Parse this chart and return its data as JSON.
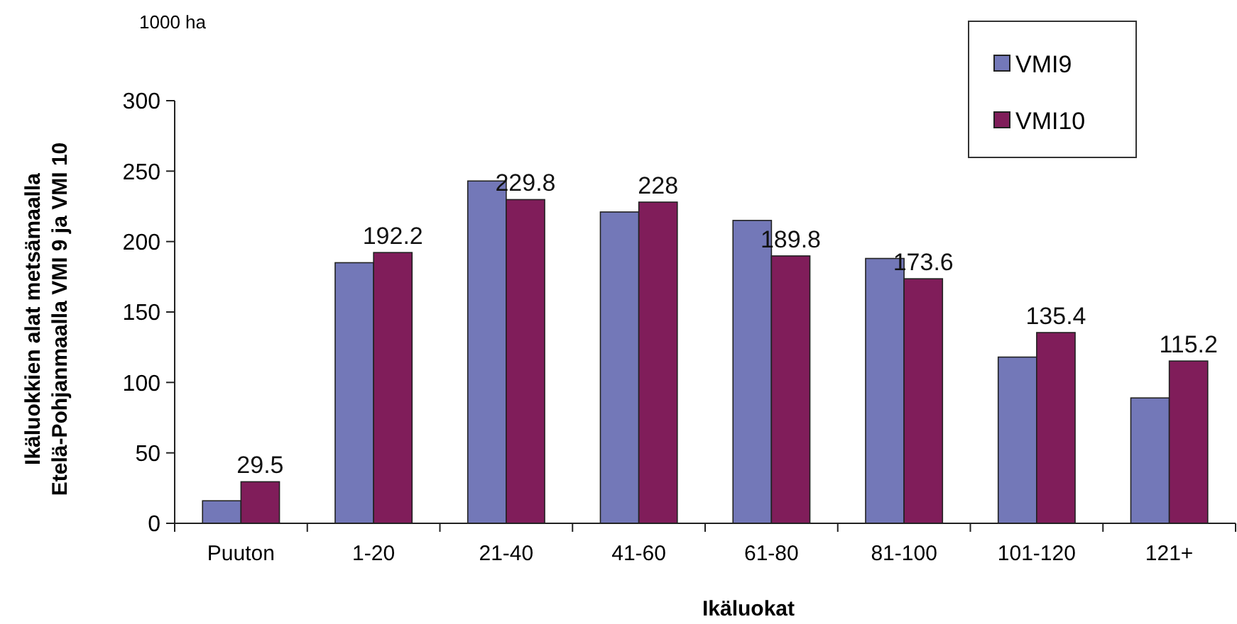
{
  "chart_data": {
    "type": "bar",
    "xlabel": "Ikäluokat",
    "ylabel": "Ikäluokkien alat metsämaalla\nEtelä-Pohjanmaalla VMI 9 ja VMI 10",
    "annotations": [
      "1000 ha"
    ],
    "categories": [
      "Puuton",
      "1-20",
      "21-40",
      "41-60",
      "61-80",
      "81-100",
      "101-120",
      "121+"
    ],
    "series": [
      {
        "name": "VMI9",
        "color": "#7378b8",
        "values": [
          16,
          185,
          243,
          221,
          215,
          188,
          118,
          89
        ]
      },
      {
        "name": "VMI10",
        "color": "#801d5a",
        "values": [
          29.5,
          192.2,
          229.8,
          228,
          189.8,
          173.6,
          135.4,
          115.2
        ],
        "value_labels": [
          "29.5",
          "192.2",
          "229.8",
          "228",
          "189.8",
          "173.6",
          "135.4",
          "115.2"
        ]
      }
    ],
    "ylim": [
      0,
      300
    ],
    "yticks": [
      0,
      50,
      100,
      150,
      200,
      250,
      300
    ],
    "grid": false,
    "legend": "top right"
  }
}
